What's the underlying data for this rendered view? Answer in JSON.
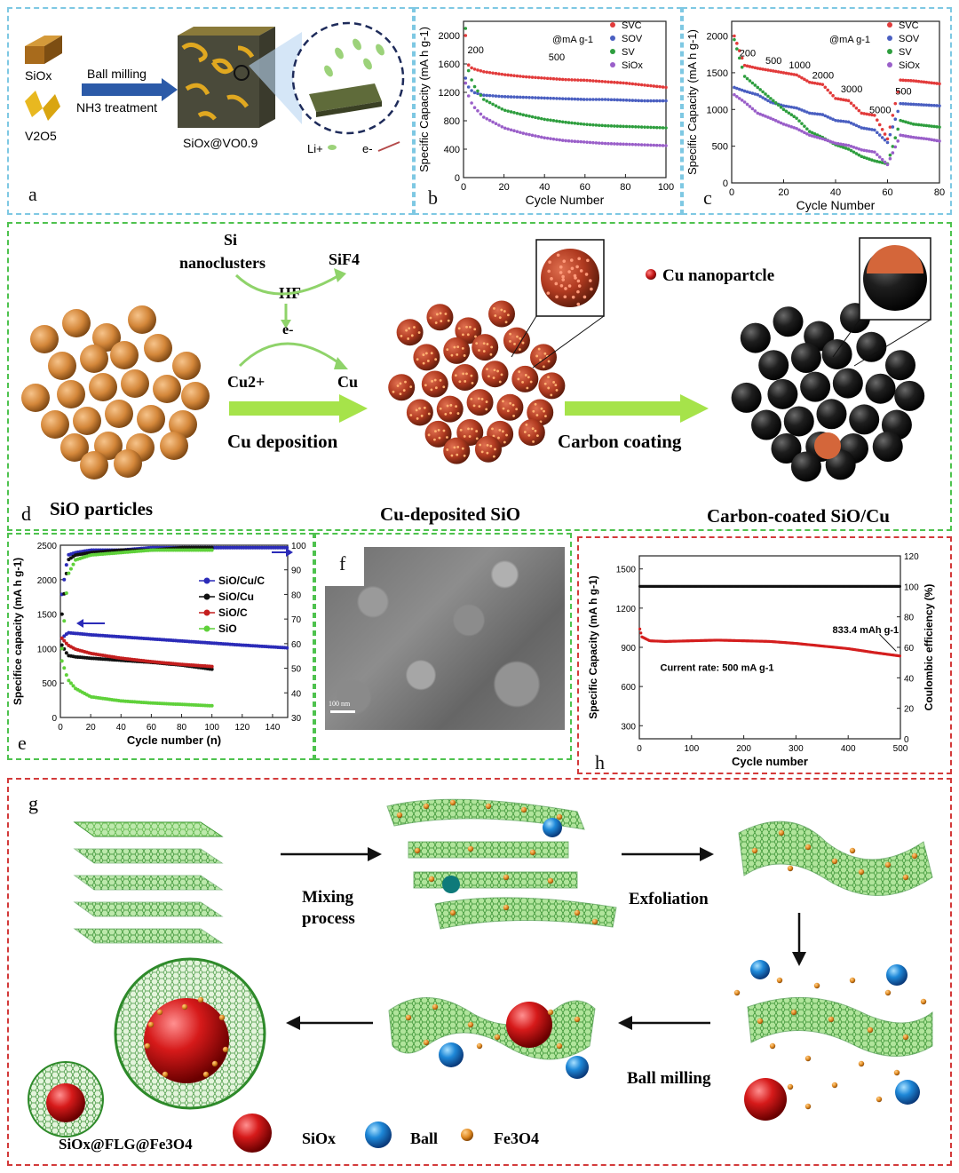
{
  "panel_a": {
    "letter": "a",
    "siox": "SiOx",
    "v2o5": "V2O5",
    "arrow_line1": "Ball milling",
    "arrow_line2": "NH3 treatment",
    "product": "SiOx@VO0.9",
    "li": "Li+",
    "e": "e-"
  },
  "panel_b": {
    "letter": "b"
  },
  "panel_c": {
    "letter": "c"
  },
  "panel_d": {
    "letter": "d",
    "si": "Si",
    "nanoclusters": "nanoclusters",
    "sif4": "SiF4",
    "hf": "HF",
    "e": "e-",
    "cu2": "Cu2+",
    "cu": "Cu",
    "cu_deposition": "Cu deposition",
    "carbon_coating": "Carbon coating",
    "legend_cu": "Cu nanopartcle",
    "cap_sio": "SiO particles",
    "cap_cu_sio": "Cu-deposited SiO",
    "cap_carbon": "Carbon-coated SiO/Cu"
  },
  "panel_e": {
    "letter": "e"
  },
  "panel_f": {
    "letter": "f",
    "scale": "100 nm"
  },
  "panel_h": {
    "letter": "h",
    "annotation": "833.4 mAh g-1",
    "rate": "Current rate:  500 mA g-1"
  },
  "panel_g": {
    "letter": "g",
    "mixing1": "Mixing",
    "mixing2": "process",
    "exfoliation": "Exfoliation",
    "ball_milling": "Ball milling",
    "product": "SiOx@FLG@Fe3O4",
    "legend_siox": "SiOx",
    "legend_ball": "Ball",
    "legend_fe3o4": "Fe3O4"
  },
  "chart_data": [
    {
      "id": "b",
      "type": "scatter",
      "xlabel": "Cycle Number",
      "ylabel": "Specific Capacity (mA h g-1)",
      "xlim": [
        0,
        100
      ],
      "ylim": [
        0,
        2200
      ],
      "xticks": [
        0,
        20,
        40,
        60,
        80,
        100
      ],
      "yticks": [
        0,
        400,
        800,
        1200,
        1600,
        2000
      ],
      "legend": [
        "SVC",
        "SOV",
        "SV",
        "SiOx"
      ],
      "legend_title": "@mA g-1",
      "annotations": [
        "200",
        "500"
      ],
      "series": [
        {
          "name": "SVC",
          "color": "#e23b3b",
          "x": [
            1,
            2,
            3,
            5,
            10,
            20,
            30,
            40,
            50,
            60,
            70,
            80,
            90,
            100
          ],
          "y": [
            2000,
            1610,
            1560,
            1530,
            1490,
            1450,
            1420,
            1400,
            1380,
            1370,
            1350,
            1330,
            1300,
            1270
          ]
        },
        {
          "name": "SOV",
          "color": "#4a5fc1",
          "x": [
            1,
            2,
            3,
            5,
            10,
            20,
            30,
            40,
            50,
            60,
            70,
            80,
            90,
            100
          ],
          "y": [
            1400,
            1300,
            1250,
            1200,
            1160,
            1140,
            1130,
            1120,
            1110,
            1100,
            1100,
            1090,
            1080,
            1080
          ]
        },
        {
          "name": "SV",
          "color": "#2e9e3e",
          "x": [
            1,
            2,
            3,
            5,
            10,
            20,
            30,
            40,
            50,
            60,
            70,
            80,
            90,
            100
          ],
          "y": [
            2100,
            1560,
            1450,
            1300,
            1100,
            950,
            880,
            820,
            780,
            750,
            730,
            720,
            710,
            700
          ]
        },
        {
          "name": "SiOx",
          "color": "#9a5fc9",
          "x": [
            1,
            2,
            3,
            5,
            10,
            20,
            30,
            40,
            50,
            60,
            70,
            80,
            90,
            100
          ],
          "y": [
            1330,
            1200,
            1100,
            1000,
            850,
            700,
            620,
            560,
            520,
            500,
            480,
            470,
            460,
            450
          ]
        }
      ]
    },
    {
      "id": "c",
      "type": "scatter",
      "xlabel": "Cycle Number",
      "ylabel": "Specific Capacity (mA h g-1)",
      "xlim": [
        0,
        80
      ],
      "ylim": [
        0,
        2200
      ],
      "xticks": [
        0,
        20,
        40,
        60,
        80
      ],
      "yticks": [
        0,
        500,
        1000,
        1500,
        2000
      ],
      "legend": [
        "SVC",
        "SOV",
        "SV",
        "SiOx"
      ],
      "legend_title": "@mA g-1",
      "annotations": [
        "200",
        "500",
        "1000",
        "2000",
        "3000",
        "5000",
        "500"
      ],
      "series": [
        {
          "name": "SVC",
          "color": "#e23b3b",
          "x": [
            1,
            5,
            10,
            15,
            20,
            25,
            30,
            35,
            40,
            45,
            50,
            55,
            60,
            65,
            70,
            75,
            80
          ],
          "y": [
            2000,
            1600,
            1560,
            1530,
            1500,
            1470,
            1370,
            1340,
            1150,
            1120,
            950,
            920,
            600,
            1400,
            1390,
            1370,
            1350
          ]
        },
        {
          "name": "SOV",
          "color": "#4a5fc1",
          "x": [
            1,
            5,
            10,
            15,
            20,
            25,
            30,
            35,
            40,
            45,
            50,
            55,
            60,
            65,
            70,
            75,
            80
          ],
          "y": [
            1300,
            1250,
            1200,
            1100,
            1050,
            1020,
            950,
            930,
            850,
            830,
            750,
            720,
            550,
            1080,
            1070,
            1060,
            1050
          ]
        },
        {
          "name": "SV",
          "color": "#2e9e3e",
          "x": [
            1,
            5,
            10,
            15,
            20,
            25,
            30,
            35,
            40,
            45,
            50,
            55,
            60,
            65,
            70,
            75,
            80
          ],
          "y": [
            1950,
            1450,
            1300,
            1150,
            1000,
            880,
            700,
            620,
            520,
            460,
            360,
            300,
            260,
            850,
            800,
            780,
            760
          ]
        },
        {
          "name": "SiOx",
          "color": "#9a5fc9",
          "x": [
            1,
            5,
            10,
            15,
            20,
            25,
            30,
            35,
            40,
            45,
            50,
            55,
            60,
            65,
            70,
            75,
            80
          ],
          "y": [
            1200,
            1100,
            950,
            880,
            800,
            740,
            650,
            600,
            540,
            510,
            450,
            420,
            250,
            650,
            620,
            600,
            570
          ]
        }
      ]
    },
    {
      "id": "e",
      "type": "scatter",
      "xlabel": "Cycle number (n)",
      "ylabel": "Specifice capacity (mA h g-1)",
      "xlim": [
        0,
        150
      ],
      "ylim": [
        0,
        2500
      ],
      "y2lim": [
        30,
        100
      ],
      "xticks": [
        0,
        20,
        40,
        60,
        80,
        100,
        120,
        140
      ],
      "yticks": [
        0,
        500,
        1000,
        1500,
        2000,
        2500
      ],
      "y2ticks": [
        30,
        40,
        50,
        60,
        70,
        80,
        90,
        100
      ],
      "legend": [
        "SiO/Cu/C",
        "SiO/Cu",
        "SiO/C",
        "SiO"
      ],
      "series": [
        {
          "name": "SiO/Cu/C",
          "color": "#2b2bb8",
          "x": [
            1,
            5,
            10,
            20,
            40,
            60,
            80,
            100,
            120,
            150
          ],
          "y": [
            1150,
            1230,
            1220,
            1200,
            1170,
            1140,
            1110,
            1080,
            1050,
            1010
          ]
        },
        {
          "name": "SiO/Cu",
          "color": "#111111",
          "x": [
            1,
            5,
            10,
            20,
            40,
            60,
            80,
            100
          ],
          "y": [
            1050,
            900,
            880,
            860,
            830,
            800,
            760,
            700
          ]
        },
        {
          "name": "SiO/C",
          "color": "#c41f1f",
          "x": [
            1,
            5,
            10,
            20,
            40,
            60,
            80,
            100
          ],
          "y": [
            1150,
            1050,
            990,
            930,
            860,
            810,
            770,
            740
          ]
        },
        {
          "name": "SiO",
          "color": "#5fd13a",
          "x": [
            1,
            5,
            10,
            20,
            40,
            60,
            80,
            100
          ],
          "y": [
            820,
            550,
            420,
            300,
            240,
            210,
            190,
            170
          ]
        }
      ],
      "efficiency": [
        {
          "name": "SiO/Cu/C",
          "color": "#2b2bb8",
          "x": [
            1,
            5,
            10,
            20,
            40,
            60,
            80,
            100,
            120,
            150
          ],
          "y": [
            80,
            96,
            97,
            98,
            98,
            99,
            99,
            99,
            99,
            99
          ]
        },
        {
          "name": "SiO/Cu",
          "color": "#111111",
          "x": [
            1,
            5,
            10,
            20,
            40,
            60,
            80,
            100
          ],
          "y": [
            72,
            94,
            96,
            97,
            98,
            98,
            99,
            99
          ]
        },
        {
          "name": "SiO",
          "color": "#5fd13a",
          "x": [
            1,
            5,
            10,
            20,
            40,
            60,
            80,
            100
          ],
          "y": [
            58,
            88,
            94,
            96,
            97,
            98,
            98,
            98
          ]
        }
      ]
    },
    {
      "id": "h",
      "type": "scatter",
      "xlabel": "Cycle number",
      "ylabel": "Specific Capacity (mA h g-1)",
      "y2label": "Coulombic efficiency (%)",
      "xlim": [
        0,
        500
      ],
      "ylim": [
        200,
        1600
      ],
      "y2lim": [
        0,
        120
      ],
      "xticks": [
        0,
        100,
        200,
        300,
        400,
        500
      ],
      "yticks": [
        300,
        600,
        900,
        1200,
        1500
      ],
      "y2ticks": [
        0,
        20,
        40,
        60,
        80,
        100,
        120
      ],
      "series": [
        {
          "name": "Capacity",
          "color": "#d41e1e",
          "x": [
            1,
            5,
            20,
            50,
            100,
            150,
            200,
            250,
            300,
            350,
            400,
            450,
            500
          ],
          "y": [
            1040,
            980,
            950,
            945,
            950,
            955,
            950,
            945,
            930,
            910,
            890,
            860,
            833.4
          ]
        },
        {
          "name": "Coulombic efficiency",
          "color": "#111111",
          "axis": "y2",
          "x": [
            1,
            50,
            100,
            200,
            300,
            400,
            500
          ],
          "y": [
            100,
            100,
            100,
            100,
            100,
            100,
            100
          ]
        }
      ]
    }
  ]
}
